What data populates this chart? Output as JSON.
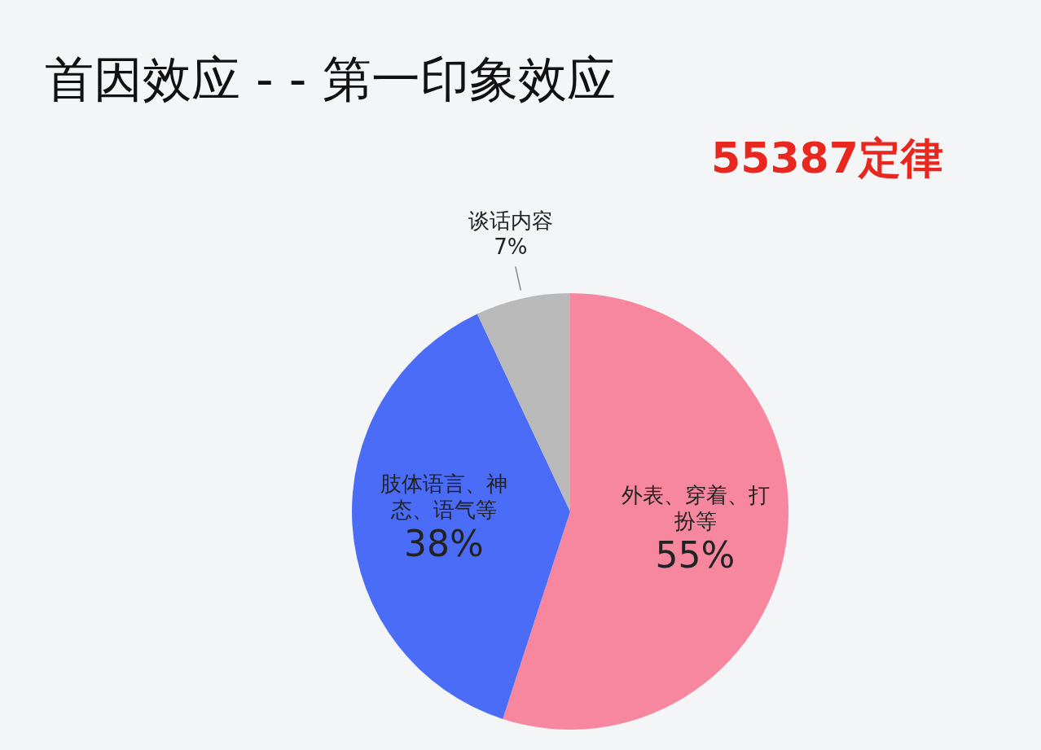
{
  "chart_data": {
    "type": "pie",
    "title": "首因效应 - - 第一印象效应",
    "subtitle": "55387定律",
    "categories": [
      "外表、穿着、打扮等",
      "肢体语言、神态、语气等",
      "谈话内容"
    ],
    "values": [
      55,
      38,
      7
    ],
    "colors": [
      "#f7879f",
      "#4a6cf7",
      "#b9b9b9"
    ],
    "value_labels": [
      "55%",
      "38%",
      "7%"
    ]
  }
}
